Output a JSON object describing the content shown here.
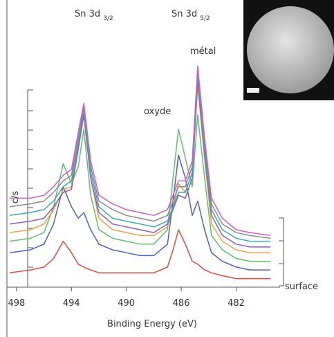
{
  "chart_data": {
    "type": "line",
    "annotations": [
      {
        "text": "Sn 3d",
        "sub": "3/2"
      },
      {
        "text": "Sn 3d",
        "sub": "5/2"
      },
      {
        "text": "métal"
      },
      {
        "text": "oxyde"
      },
      {
        "text": "surface"
      }
    ],
    "ylabel": "c/s",
    "xlabel": "Binding Energy (eV)",
    "x": [
      498.5,
      497,
      496,
      495.3,
      494.6,
      494,
      493.5,
      493.1,
      492.6,
      492,
      491,
      490,
      489,
      488,
      487,
      486.6,
      486.2,
      485.7,
      485.2,
      484.8,
      484.3,
      483.8,
      483,
      482,
      481,
      479.5
    ],
    "xlim": [
      498.7,
      478.8
    ],
    "xticks": [
      498,
      494,
      490,
      486,
      482
    ],
    "ylim": [
      0,
      100
    ],
    "series": [
      {
        "color": "#e8473a",
        "values": [
          5,
          6,
          7,
          10,
          16,
          12,
          8,
          7,
          6,
          5,
          5,
          5,
          5,
          5,
          7,
          13,
          20,
          15,
          9,
          8,
          6,
          5,
          4,
          3,
          3,
          3
        ]
      },
      {
        "color": "#4a5fc4",
        "values": [
          12,
          13,
          15,
          22,
          35,
          28,
          24,
          26,
          20,
          15,
          13,
          12,
          11,
          11,
          15,
          30,
          46,
          38,
          25,
          30,
          20,
          12,
          9,
          7,
          6,
          6
        ]
      },
      {
        "color": "#5fbf6a",
        "values": [
          16,
          17,
          19,
          28,
          43,
          36,
          42,
          55,
          32,
          20,
          17,
          16,
          15,
          15,
          20,
          38,
          55,
          45,
          35,
          60,
          38,
          18,
          13,
          10,
          9,
          9
        ]
      },
      {
        "color": "#f0a040",
        "values": [
          19,
          20,
          22,
          27,
          34,
          35,
          50,
          62,
          38,
          24,
          20,
          19,
          18,
          18,
          21,
          28,
          36,
          33,
          40,
          70,
          45,
          22,
          16,
          13,
          12,
          12
        ]
      },
      {
        "color": "#8c5cc0",
        "values": [
          22,
          23,
          24,
          28,
          33,
          34,
          48,
          60,
          38,
          26,
          22,
          21,
          20,
          19,
          22,
          27,
          32,
          31,
          38,
          72,
          46,
          25,
          18,
          15,
          14,
          14
        ]
      },
      {
        "color": "#3aa8b8",
        "values": [
          25,
          26,
          27,
          30,
          35,
          37,
          50,
          62,
          40,
          28,
          24,
          23,
          22,
          21,
          23,
          28,
          33,
          33,
          40,
          74,
          48,
          27,
          20,
          17,
          16,
          16
        ]
      },
      {
        "color": "#8a8a8a",
        "values": [
          28,
          29,
          30,
          33,
          37,
          39,
          52,
          63,
          42,
          30,
          27,
          25,
          24,
          23,
          25,
          30,
          35,
          35,
          42,
          76,
          50,
          29,
          22,
          19,
          18,
          17
        ]
      },
      {
        "color": "#d05cc8",
        "values": [
          31,
          31,
          32,
          35,
          39,
          41,
          54,
          64,
          44,
          32,
          29,
          27,
          26,
          25,
          27,
          32,
          37,
          37,
          44,
          77,
          52,
          31,
          24,
          20,
          19,
          18
        ]
      }
    ]
  }
}
